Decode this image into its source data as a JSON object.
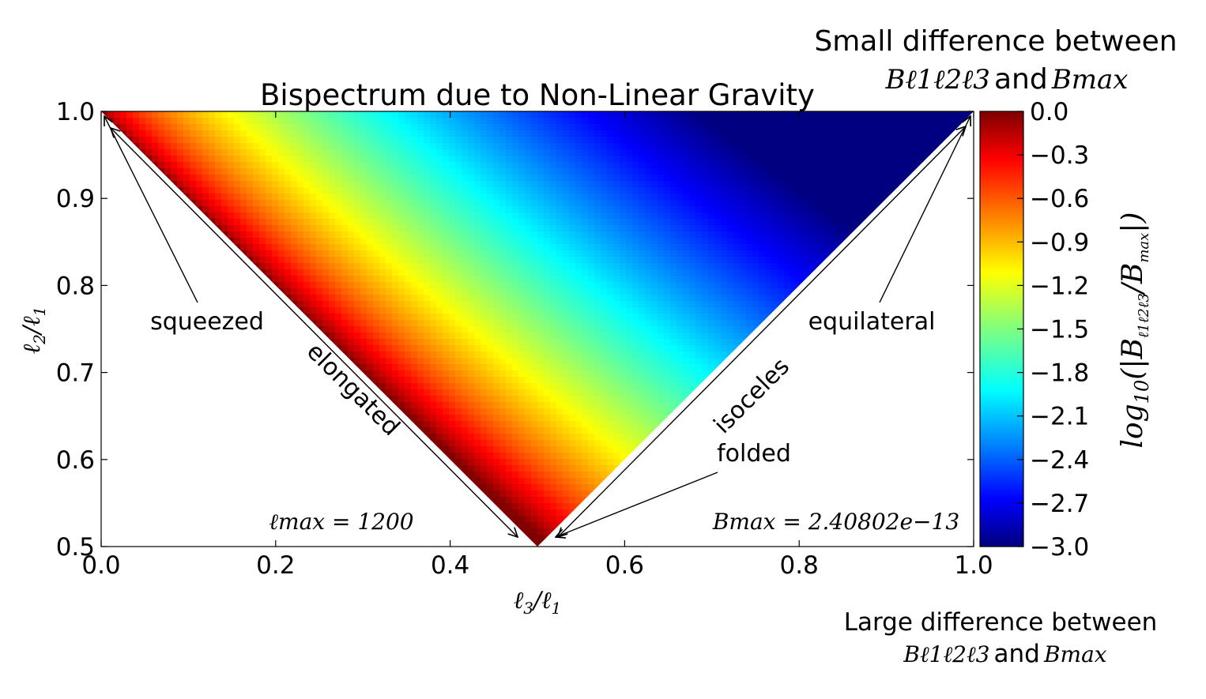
{
  "chart_data": {
    "type": "heatmap",
    "title": "Bispectrum due to Non-Linear Gravity",
    "xlabel": "ℓ3/ℓ1",
    "ylabel": "ℓ2/ℓ1",
    "xlim": [
      0.0,
      1.0
    ],
    "ylim": [
      0.5,
      1.0
    ],
    "x_ticks": [
      0.0,
      0.2,
      0.4,
      0.6,
      0.8,
      1.0
    ],
    "x_tick_labels": [
      "0.0",
      "0.2",
      "0.4",
      "0.6",
      "0.8",
      "1.0"
    ],
    "y_ticks": [
      0.5,
      0.6,
      0.7,
      0.8,
      0.9,
      1.0
    ],
    "y_tick_labels": [
      "0.5",
      "0.6",
      "0.7",
      "0.8",
      "0.9",
      "1.0"
    ],
    "region": "triangle with vertices (0,1), (0.5,0.5), (1,1)",
    "colormap": "jet",
    "colorbar": {
      "label": "log10(|Bℓ1ℓ2ℓ3 / Bmax|)",
      "range": [
        -3.0,
        0.0
      ],
      "ticks": [
        0.0,
        -0.3,
        -0.6,
        -0.9,
        -1.2,
        -1.5,
        -1.8,
        -2.1,
        -2.4,
        -2.7,
        -3.0
      ],
      "tick_labels": [
        "0.0",
        "−0.3",
        "−0.6",
        "−0.9",
        "−1.2",
        "−1.5",
        "−1.8",
        "−2.1",
        "−2.4",
        "−2.7",
        "−3.0"
      ],
      "top_caption_line1": "Small difference between",
      "top_caption_line2_sym": "Bℓ1ℓ2ℓ3",
      "top_caption_line2_and": "and",
      "top_caption_line2_sym2": "Bmax",
      "bottom_caption_line1": "Large difference between",
      "bottom_caption_line2_sym": "Bℓ1ℓ2ℓ3",
      "bottom_caption_line2_and": "and",
      "bottom_caption_line2_sym2": "Bmax"
    },
    "annotations": {
      "squeezed": "squeezed",
      "elongated": "elongated",
      "isoceles": "isoceles",
      "folded": "folded",
      "equilateral": "equilateral",
      "lmax": "ℓmax = 1200",
      "bmax": "Bmax = 2.40802e−13"
    },
    "colors": {
      "jet_stops": [
        "#00007f",
        "#0000ff",
        "#007fff",
        "#00ffff",
        "#7fff7f",
        "#ffff00",
        "#ff7f00",
        "#ff0000",
        "#7f0000"
      ]
    }
  }
}
